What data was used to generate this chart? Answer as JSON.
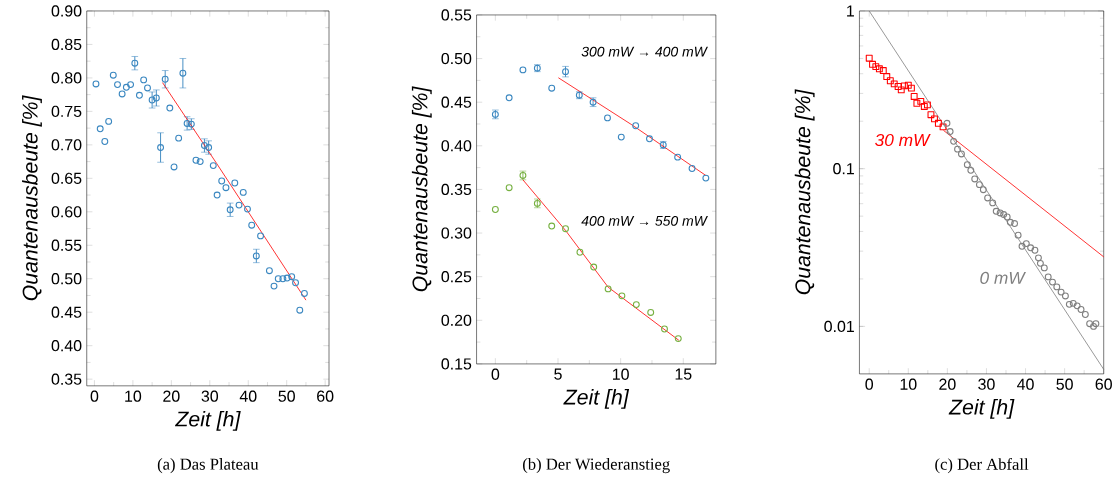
{
  "chart_data": [
    {
      "type": "scatter",
      "xlabel": "Zeit [h]",
      "ylabel": "Quantenausbeute [%]",
      "marker": "circle",
      "xlim": [
        -2,
        61
      ],
      "ylim": [
        0.34,
        0.9
      ],
      "xticks": [
        0,
        10,
        20,
        30,
        40,
        50,
        60
      ],
      "yticks": [
        {
          "value": 0.35,
          "label": "0.35"
        },
        {
          "value": 0.4,
          "label": "0.40"
        },
        {
          "value": 0.45,
          "label": "0.45"
        },
        {
          "value": 0.5,
          "label": "0.50"
        },
        {
          "value": 0.55,
          "label": "0.55"
        },
        {
          "value": 0.6,
          "label": "0.60"
        },
        {
          "value": 0.65,
          "label": "0.65"
        },
        {
          "value": 0.7,
          "label": "0.70"
        },
        {
          "value": 0.75,
          "label": "0.75"
        },
        {
          "value": 0.8,
          "label": "0.80"
        },
        {
          "value": 0.85,
          "label": "0.85"
        },
        {
          "value": 0.9,
          "label": "0.90"
        }
      ],
      "series": [
        {
          "color": "#3a87c0",
          "x": [
            0.4,
            1.5,
            2.7,
            3.7,
            4.9,
            6.0,
            7.2,
            8.3,
            9.4,
            10.5,
            11.7,
            12.8,
            13.8,
            15.0,
            16.1,
            17.2,
            18.4,
            19.6,
            20.7,
            21.9,
            23.0,
            24.1,
            25.2,
            26.4,
            27.5,
            28.6,
            29.7,
            30.9,
            31.9,
            33.1,
            34.2,
            35.3,
            36.5,
            37.6,
            38.7,
            39.8,
            40.9,
            42.1,
            43.2,
            45.5,
            46.7,
            47.8,
            49.0,
            50.1,
            51.3,
            52.3,
            53.4,
            54.6
          ],
          "values": [
            0.791,
            0.724,
            0.705,
            0.735,
            0.804,
            0.79,
            0.776,
            0.786,
            0.79,
            0.822,
            0.774,
            0.797,
            0.785,
            0.767,
            0.77,
            0.696,
            0.798,
            0.755,
            0.667,
            0.71,
            0.807,
            0.732,
            0.731,
            0.677,
            0.675,
            0.699,
            0.696,
            0.669,
            0.625,
            0.646,
            0.636,
            0.603,
            0.643,
            0.61,
            0.629,
            0.604,
            0.58,
            0.534,
            0.564,
            0.512,
            0.489,
            0.5,
            0.5,
            0.501,
            0.503,
            0.494,
            0.453,
            0.478
          ],
          "errors": [
            null,
            null,
            null,
            null,
            null,
            null,
            null,
            null,
            null,
            0.01,
            null,
            null,
            null,
            0.012,
            0.012,
            0.022,
            0.013,
            null,
            null,
            null,
            0.022,
            0.01,
            0.008,
            null,
            null,
            0.01,
            0.01,
            null,
            null,
            null,
            null,
            0.01,
            null,
            null,
            null,
            null,
            null,
            0.01,
            null,
            null,
            null,
            null,
            null,
            null,
            null,
            null,
            null,
            null
          ]
        },
        {
          "type": "line",
          "marker": "none",
          "color": "#ff0000",
          "x": [
            17.7,
            31.8,
            55.0
          ],
          "values": [
            0.793,
            0.672,
            0.468
          ]
        }
      ],
      "annotations": [
        "(a) Das Plateau"
      ]
    },
    {
      "type": "scatter",
      "xlabel": "Zeit [h]",
      "ylabel": "Quantenausbeute [%]",
      "marker": "circle",
      "xlim": [
        -1.5,
        17.6
      ],
      "ylim": [
        0.15,
        0.55
      ],
      "xticks": [
        0,
        5,
        10,
        15
      ],
      "yticks": [
        {
          "value": 0.15,
          "label": "0.15"
        },
        {
          "value": 0.2,
          "label": "0.20"
        },
        {
          "value": 0.25,
          "label": "0.25"
        },
        {
          "value": 0.3,
          "label": "0.30"
        },
        {
          "value": 0.35,
          "label": "0.35"
        },
        {
          "value": 0.4,
          "label": "0.40"
        },
        {
          "value": 0.45,
          "label": "0.45"
        },
        {
          "value": 0.5,
          "label": "0.50"
        },
        {
          "value": 0.55,
          "label": "0.55"
        }
      ],
      "series": [
        {
          "color": "#3a87c0",
          "x": [
            0.0,
            1.1,
            2.2,
            3.35,
            4.5,
            5.6,
            6.7,
            7.8,
            8.95,
            10.05,
            11.2,
            12.3,
            13.4,
            14.55,
            15.7,
            16.8
          ],
          "values": [
            0.436,
            0.455,
            0.487,
            0.489,
            0.466,
            0.485,
            0.458,
            0.45,
            0.432,
            0.41,
            0.423,
            0.408,
            0.401,
            0.387,
            0.374,
            0.363
          ],
          "errors": [
            0.005,
            null,
            null,
            0.004,
            null,
            0.006,
            0.004,
            0.005,
            null,
            null,
            null,
            null,
            0.004,
            null,
            null,
            null
          ]
        },
        {
          "color": "#76b041",
          "x": [
            0.0,
            1.1,
            2.2,
            3.35,
            4.5,
            5.6,
            6.75,
            7.85,
            9.0,
            10.1,
            11.25,
            12.4,
            13.5,
            14.6
          ],
          "values": [
            0.327,
            0.352,
            0.366,
            0.334,
            0.308,
            0.305,
            0.278,
            0.261,
            0.236,
            0.228,
            0.218,
            0.209,
            0.19,
            0.179
          ],
          "errors": [
            null,
            null,
            0.005,
            0.005,
            null,
            null,
            null,
            null,
            null,
            null,
            null,
            null,
            null,
            null
          ]
        },
        {
          "type": "line",
          "marker": "none",
          "color": "#ff0000",
          "x": [
            5.03,
            10.9,
            16.8
          ],
          "values": [
            0.478,
            0.424,
            0.366
          ]
        },
        {
          "type": "line",
          "marker": "none",
          "color": "#ff0000",
          "x": [
            2.2,
            5.6,
            9.0,
            14.65
          ],
          "values": [
            0.361,
            0.303,
            0.238,
            0.177
          ]
        }
      ],
      "annotations": [
        "300 mW → 400 mW",
        "400 mW → 550 mW",
        "(b) Der Wiederanstieg"
      ]
    },
    {
      "type": "scatter",
      "xlabel": "Zeit [h]",
      "ylabel": "Quantenausbeute [%]",
      "log": "y",
      "xlim": [
        -2.5,
        60
      ],
      "ylim": [
        0.005,
        1
      ],
      "xticks": [
        0,
        10,
        20,
        30,
        40,
        50,
        60
      ],
      "yticks": [
        0.01,
        0.1,
        1
      ],
      "series": [
        {
          "name": "30 mW",
          "marker": "square",
          "color": "#ff0000",
          "x": [
            0,
            0.85,
            1.7,
            2.6,
            3.6,
            4.5,
            5.4,
            6.4,
            7.4,
            8.2,
            9.0,
            10.0,
            10.8,
            11.5,
            12.2,
            13.2,
            14.1,
            14.9,
            15.8,
            16.7,
            17.7,
            18.9
          ],
          "values": [
            0.502,
            0.459,
            0.444,
            0.43,
            0.419,
            0.384,
            0.361,
            0.345,
            0.332,
            0.316,
            0.335,
            0.338,
            0.324,
            0.287,
            0.26,
            0.267,
            0.248,
            0.254,
            0.22,
            0.207,
            0.194,
            0.184
          ]
        },
        {
          "name": "0 mW",
          "marker": "circle",
          "color": "#7f7f7f",
          "x": [
            19.9,
            20.7,
            21.6,
            22.6,
            23.6,
            25.1,
            26.0,
            27.0,
            28.2,
            29.2,
            30.3,
            31.6,
            32.5,
            33.5,
            34.4,
            35.3,
            36.1,
            37.2,
            38.1,
            39.1,
            40.2,
            41.3,
            42.4,
            43.3,
            43.8,
            44.8,
            45.8,
            46.9,
            48.0,
            49.1,
            50.2,
            51.2,
            52.2,
            53.2,
            54.2,
            55.3,
            56.4,
            57.4,
            58.0
          ],
          "values": [
            0.194,
            0.172,
            0.149,
            0.133,
            0.124,
            0.106,
            0.0976,
            0.0861,
            0.0792,
            0.0736,
            0.0652,
            0.0607,
            0.0537,
            0.0524,
            0.0512,
            0.0494,
            0.0457,
            0.0449,
            0.0379,
            0.0322,
            0.0335,
            0.0315,
            0.0304,
            0.0272,
            0.0251,
            0.0235,
            0.0206,
            0.0191,
            0.0178,
            0.0165,
            0.0156,
            0.0138,
            0.014,
            0.0135,
            0.0128,
            0.0119,
            0.0104,
            0.01,
            0.0104
          ]
        },
        {
          "type": "line",
          "marker": "none",
          "color": "#ff0000",
          "x": [
            19.0,
            60
          ],
          "values": [
            0.175,
            0.0276
          ]
        },
        {
          "type": "line",
          "marker": "none",
          "color": "#7f7f7f",
          "x": [
            0,
            60
          ],
          "values": [
            1.0,
            0.00534
          ]
        }
      ],
      "annotations": [
        "(c) Der Abfall"
      ]
    }
  ]
}
